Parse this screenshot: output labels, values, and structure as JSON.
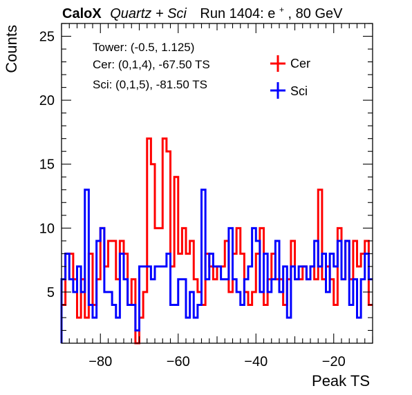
{
  "header": {
    "brand": "CaloX",
    "subtitle": "Quartz + Sci",
    "run_prefix": "Run 1404: e",
    "run_sup": "+",
    "run_suffix": ", 80 GeV"
  },
  "annotation": {
    "line1": "Tower: (-0.5, 1.125)",
    "line2": "Cer: (0,1,4), -67.50 TS",
    "line3": "Sci: (0,1,5), -81.50 TS"
  },
  "chart_data": {
    "type": "histogram",
    "xlabel": "Peak TS",
    "ylabel": "Counts",
    "xlim": [
      -90,
      -10
    ],
    "ylim": [
      1,
      26
    ],
    "bin_width": 1,
    "x_ticks": [
      -80,
      -60,
      -40,
      -20
    ],
    "y_ticks": [
      5,
      10,
      15,
      20,
      25
    ],
    "legend_position": "top-right",
    "grid": false,
    "series": [
      {
        "name": "Cer",
        "color": "#ff0000",
        "bin_low_edges": [
          -90,
          -89,
          -88,
          -87,
          -86,
          -85,
          -84,
          -83,
          -82,
          -81,
          -80,
          -79,
          -78,
          -77,
          -76,
          -75,
          -74,
          -73,
          -72,
          -71,
          -70,
          -69,
          -68,
          -67,
          -66,
          -65,
          -64,
          -63,
          -62,
          -61,
          -60,
          -59,
          -58,
          -57,
          -56,
          -55,
          -54,
          -53,
          -52,
          -51,
          -50,
          -49,
          -48,
          -47,
          -46,
          -45,
          -44,
          -43,
          -42,
          -41,
          -40,
          -39,
          -38,
          -37,
          -36,
          -35,
          -34,
          -33,
          -32,
          -31,
          -30,
          -29,
          -28,
          -27,
          -26,
          -25,
          -24,
          -23,
          -22,
          -21,
          -20,
          -19,
          -18,
          -17,
          -16,
          -15,
          -14,
          -13,
          -12,
          -11
        ],
        "values": [
          4,
          8,
          8,
          6,
          3,
          6,
          3,
          8,
          4,
          6,
          10,
          7,
          9,
          9,
          6,
          9,
          8,
          4,
          6,
          1,
          3,
          5,
          17,
          15,
          10,
          10,
          17,
          16,
          7,
          14,
          8,
          10,
          8,
          9,
          6,
          5,
          4,
          8,
          7,
          6,
          7,
          7,
          9,
          5,
          8,
          10,
          8,
          5,
          4,
          5,
          8,
          10,
          4,
          6,
          8,
          6,
          6,
          4,
          6,
          9,
          6,
          6,
          7,
          6,
          7,
          6,
          13,
          6,
          7,
          6,
          4,
          10,
          6,
          9,
          6,
          9,
          7,
          8,
          9,
          4
        ]
      },
      {
        "name": "Sci",
        "color": "#0000ff",
        "bin_low_edges": [
          -90,
          -89,
          -88,
          -87,
          -86,
          -85,
          -84,
          -83,
          -82,
          -81,
          -80,
          -79,
          -78,
          -77,
          -76,
          -75,
          -74,
          -73,
          -72,
          -71,
          -70,
          -69,
          -68,
          -67,
          -66,
          -65,
          -64,
          -63,
          -62,
          -61,
          -60,
          -59,
          -58,
          -57,
          -56,
          -55,
          -54,
          -53,
          -52,
          -51,
          -50,
          -49,
          -48,
          -47,
          -46,
          -45,
          -44,
          -43,
          -42,
          -41,
          -40,
          -39,
          -38,
          -37,
          -36,
          -35,
          -34,
          -33,
          -32,
          -31,
          -30,
          -29,
          -28,
          -27,
          -26,
          -25,
          -24,
          -23,
          -22,
          -21,
          -20,
          -19,
          -18,
          -17,
          -16,
          -15,
          -14,
          -13,
          -12,
          -11
        ],
        "values": [
          6,
          8,
          6,
          5,
          7,
          5,
          13,
          4,
          3,
          9,
          10,
          5,
          5,
          4,
          3,
          8,
          6,
          4,
          4,
          2,
          7,
          7,
          7,
          6,
          7,
          7,
          7,
          8,
          4,
          4,
          6,
          6,
          3,
          5,
          3,
          4,
          13,
          6,
          8,
          7,
          7,
          6,
          6,
          10,
          6,
          5,
          4,
          6,
          7,
          10,
          9,
          5,
          8,
          5,
          6,
          9,
          5,
          7,
          3,
          7,
          6,
          7,
          7,
          6,
          7,
          9,
          7,
          8,
          5,
          8,
          7,
          9,
          6,
          9,
          4,
          6,
          3,
          6,
          8,
          6
        ]
      }
    ]
  }
}
